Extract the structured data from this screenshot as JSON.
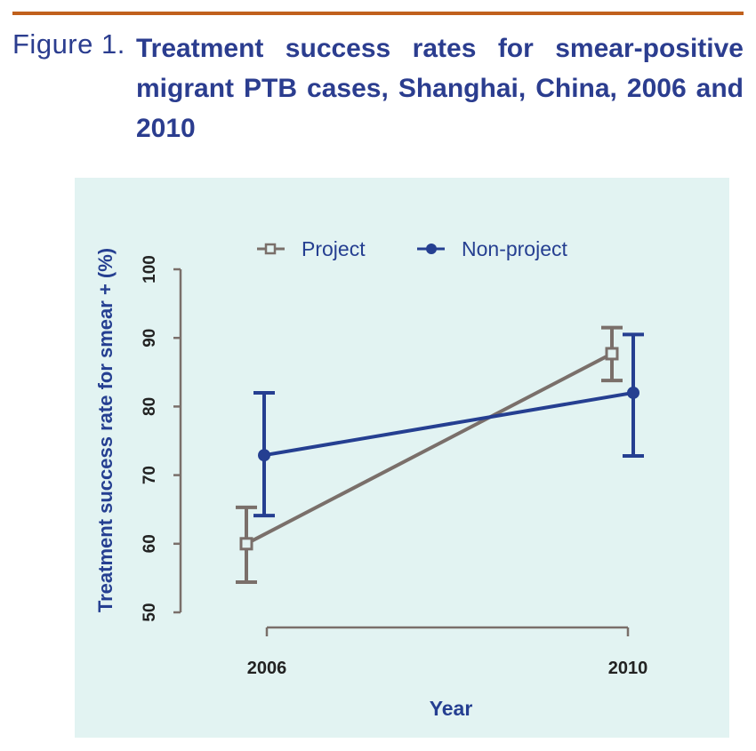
{
  "figure": {
    "label": "Figure 1.",
    "title": "Treatment success rates for smear-positive migrant PTB cases, Shanghai, China, 2006 and 2010"
  },
  "chart_data": {
    "type": "line",
    "title": "Treatment success rates for smear-positive migrant PTB cases, Shanghai, China, 2006 and 2010",
    "xlabel": "Year",
    "ylabel": "Treatment success rate for smear + (%)",
    "categories": [
      "2006",
      "2010"
    ],
    "ylim": [
      50,
      100
    ],
    "yticks": [
      "50",
      "60",
      "70",
      "80",
      "90",
      "100"
    ],
    "legend_position": "top",
    "series": [
      {
        "name": "Project",
        "color": "#7a6f6a",
        "marker": "square-open",
        "values": [
          60.0,
          87.7
        ],
        "ci_low": [
          54.4,
          83.8
        ],
        "ci_high": [
          65.3,
          91.5
        ]
      },
      {
        "name": "Non-project",
        "color": "#253f91",
        "marker": "circle-filled",
        "values": [
          72.9,
          82.0
        ],
        "ci_low": [
          64.1,
          72.8
        ],
        "ci_high": [
          82.0,
          90.5
        ]
      }
    ]
  }
}
